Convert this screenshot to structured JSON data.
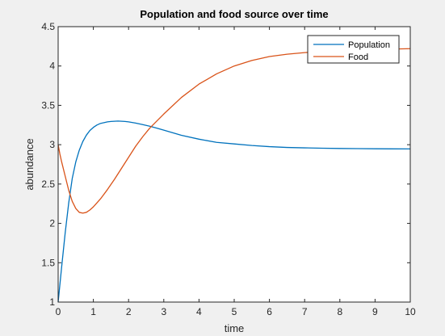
{
  "chart_data": {
    "type": "line",
    "title": "Population and food source over time",
    "xlabel": "time",
    "ylabel": "abundance",
    "xlim": [
      0,
      10
    ],
    "ylim": [
      1,
      4.5
    ],
    "xticks": [
      0,
      1,
      2,
      3,
      4,
      5,
      6,
      7,
      8,
      9,
      10
    ],
    "yticks": [
      1,
      1.5,
      2,
      2.5,
      3,
      3.5,
      4,
      4.5
    ],
    "grid": false,
    "legend": {
      "placement": "top-right"
    },
    "series": [
      {
        "name": "Population",
        "color": "#0072bd",
        "x": [
          0,
          0.1,
          0.2,
          0.3,
          0.4,
          0.5,
          0.6,
          0.7,
          0.8,
          0.9,
          1.0,
          1.1,
          1.2,
          1.3,
          1.4,
          1.5,
          1.6,
          1.7,
          1.8,
          1.9,
          2.0,
          2.2,
          2.4,
          2.6,
          2.8,
          3.0,
          3.5,
          4.0,
          4.5,
          5.0,
          5.5,
          6.0,
          6.5,
          7.0,
          7.5,
          8.0,
          8.5,
          9.0,
          9.5,
          10.0
        ],
        "y": [
          1.0,
          1.45,
          1.88,
          2.26,
          2.57,
          2.78,
          2.93,
          3.04,
          3.12,
          3.18,
          3.22,
          3.25,
          3.27,
          3.28,
          3.29,
          3.295,
          3.298,
          3.3,
          3.298,
          3.295,
          3.29,
          3.275,
          3.255,
          3.235,
          3.21,
          3.185,
          3.12,
          3.07,
          3.03,
          3.01,
          2.99,
          2.975,
          2.965,
          2.96,
          2.955,
          2.952,
          2.95,
          2.948,
          2.947,
          2.946
        ]
      },
      {
        "name": "Food",
        "color": "#d95319",
        "x": [
          0,
          0.05,
          0.1,
          0.2,
          0.3,
          0.4,
          0.5,
          0.6,
          0.7,
          0.8,
          0.9,
          1.0,
          1.2,
          1.4,
          1.6,
          1.8,
          2.0,
          2.2,
          2.4,
          2.6,
          2.8,
          3.0,
          3.5,
          4.0,
          4.5,
          5.0,
          5.5,
          6.0,
          6.5,
          7.0,
          7.5,
          8.0,
          8.5,
          9.0,
          9.5,
          10.0
        ],
        "y": [
          3.0,
          2.88,
          2.78,
          2.6,
          2.42,
          2.28,
          2.19,
          2.14,
          2.13,
          2.14,
          2.17,
          2.21,
          2.31,
          2.43,
          2.56,
          2.7,
          2.84,
          2.98,
          3.1,
          3.21,
          3.3,
          3.39,
          3.6,
          3.77,
          3.9,
          4.0,
          4.07,
          4.12,
          4.15,
          4.17,
          4.185,
          4.195,
          4.205,
          4.21,
          4.215,
          4.22
        ]
      }
    ]
  }
}
